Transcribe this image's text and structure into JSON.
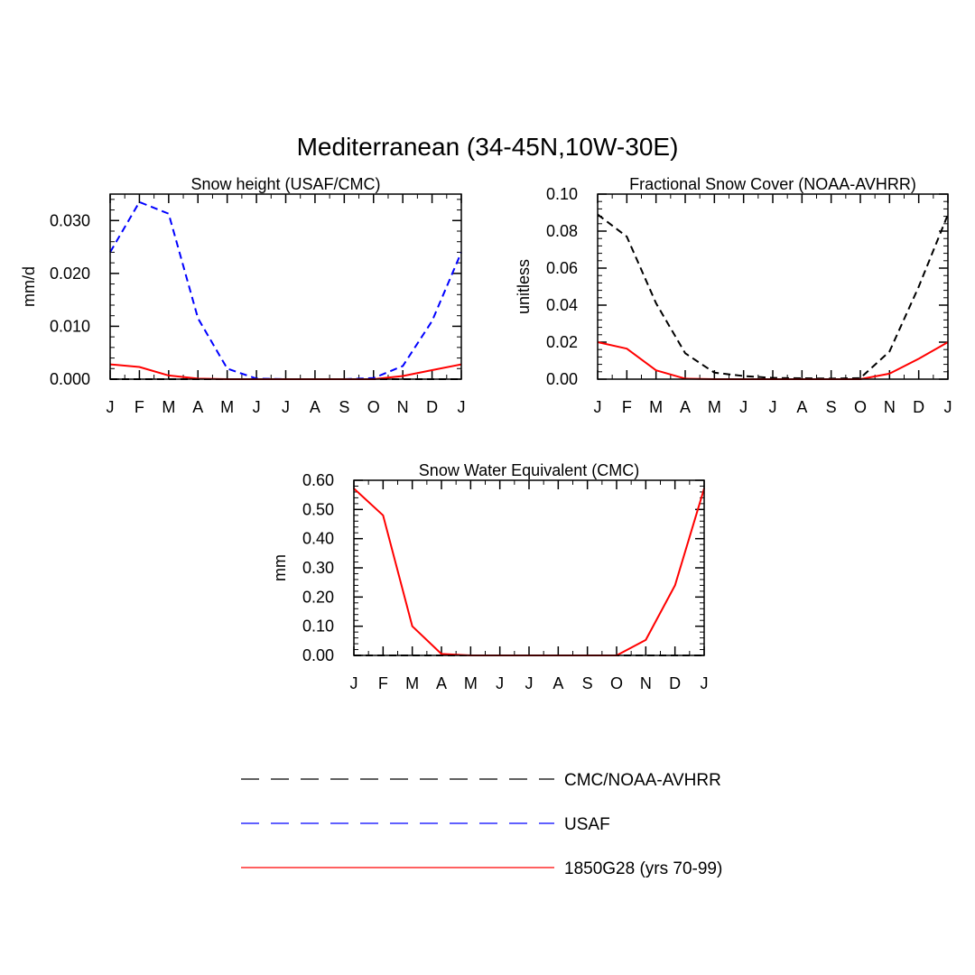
{
  "figure": {
    "title": "Mediterranean (34-45N,10W-30E)"
  },
  "months": [
    "J",
    "F",
    "M",
    "A",
    "M",
    "J",
    "J",
    "A",
    "S",
    "O",
    "N",
    "D",
    "J"
  ],
  "colors": {
    "obs": "#000000",
    "usaf": "#0000ff",
    "model": "#ff0000"
  },
  "legend": [
    {
      "label": "CMC/NOAA-AVHRR",
      "color": "#000000",
      "style": "dashed"
    },
    {
      "label": "USAF",
      "color": "#0000ff",
      "style": "dashed"
    },
    {
      "label": "1850G28 (yrs 70-99)",
      "color": "#ff0000",
      "style": "solid"
    }
  ],
  "chart_data": [
    {
      "type": "line",
      "title": "Snow height (USAF/CMC)",
      "ylabel": "mm/d",
      "xlabel": "",
      "categories": [
        "J",
        "F",
        "M",
        "A",
        "M",
        "J",
        "J",
        "A",
        "S",
        "O",
        "N",
        "D",
        "J"
      ],
      "ylim": [
        0,
        0.035
      ],
      "yticks": [
        "0.000",
        "0.010",
        "0.020",
        "0.030"
      ],
      "ytick_values": [
        0,
        0.01,
        0.02,
        0.03
      ],
      "series": [
        {
          "key": "obs",
          "style": "dashed",
          "values": [
            0,
            0,
            0,
            0,
            0,
            0,
            0,
            0,
            0,
            0,
            0,
            0,
            0
          ]
        },
        {
          "key": "usaf",
          "style": "dashed",
          "values": [
            0.024,
            0.0335,
            0.0313,
            0.0115,
            0.002,
            0.0001,
            0,
            0,
            0,
            0.0002,
            0.0025,
            0.011,
            0.024
          ]
        },
        {
          "key": "model",
          "style": "solid",
          "values": [
            0.0028,
            0.0023,
            0.0007,
            0.0001,
            0,
            0,
            0,
            0,
            0,
            0,
            0.0006,
            0.0017,
            0.0028
          ]
        }
      ]
    },
    {
      "type": "line",
      "title": "Fractional Snow Cover (NOAA-AVHRR)",
      "ylabel": "unitless",
      "xlabel": "",
      "categories": [
        "J",
        "F",
        "M",
        "A",
        "M",
        "J",
        "J",
        "A",
        "S",
        "O",
        "N",
        "D",
        "J"
      ],
      "ylim": [
        0,
        0.1
      ],
      "yticks": [
        "0.00",
        "0.02",
        "0.04",
        "0.06",
        "0.08",
        "0.10"
      ],
      "ytick_values": [
        0,
        0.02,
        0.04,
        0.06,
        0.08,
        0.1
      ],
      "series": [
        {
          "key": "obs",
          "style": "dashed",
          "values": [
            0.089,
            0.077,
            0.041,
            0.014,
            0.0035,
            0.0017,
            0.0007,
            0.0005,
            0.0003,
            0.0006,
            0.015,
            0.05,
            0.089
          ]
        },
        {
          "key": "model",
          "style": "solid",
          "values": [
            0.02,
            0.0165,
            0.0048,
            0.0003,
            0,
            0,
            0,
            0,
            0,
            0,
            0.003,
            0.011,
            0.02
          ]
        }
      ]
    },
    {
      "type": "line",
      "title": "Snow Water Equivalent (CMC)",
      "ylabel": "mm",
      "xlabel": "",
      "categories": [
        "J",
        "F",
        "M",
        "A",
        "M",
        "J",
        "J",
        "A",
        "S",
        "O",
        "N",
        "D",
        "J"
      ],
      "ylim": [
        0,
        0.6
      ],
      "yticks": [
        "0.00",
        "0.10",
        "0.20",
        "0.30",
        "0.40",
        "0.50",
        "0.60"
      ],
      "ytick_values": [
        0,
        0.1,
        0.2,
        0.3,
        0.4,
        0.5,
        0.6
      ],
      "series": [
        {
          "key": "obs",
          "style": "dashed",
          "values": [
            0,
            0,
            0,
            0,
            0,
            0,
            0,
            0,
            0,
            0,
            0,
            0,
            0
          ]
        },
        {
          "key": "model",
          "style": "solid",
          "values": [
            0.572,
            0.48,
            0.1,
            0.005,
            0,
            0,
            0,
            0,
            0,
            0,
            0.053,
            0.24,
            0.572
          ]
        }
      ]
    }
  ]
}
